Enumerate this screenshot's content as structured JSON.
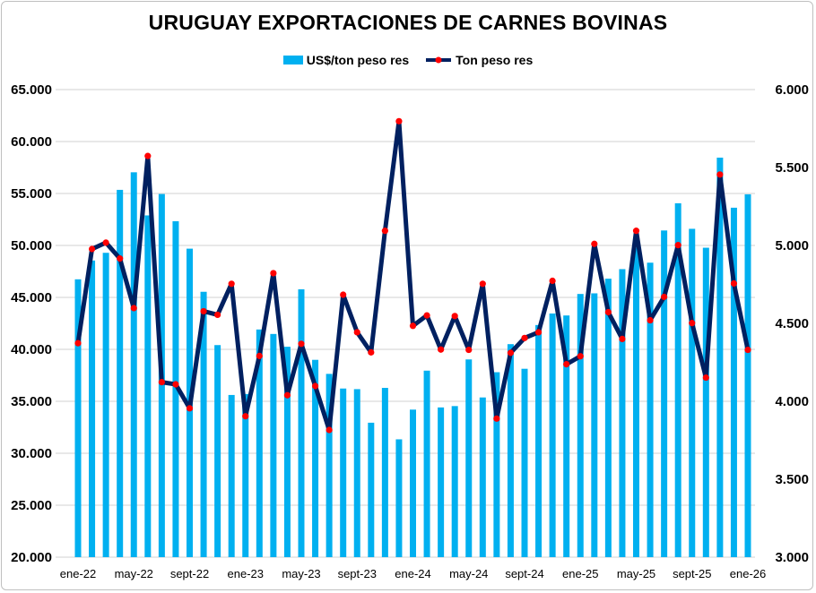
{
  "chart_data": {
    "type": "bar+line",
    "title": "URUGUAY EXPORTACIONES DE CARNES BOVINAS",
    "legend_position": "top-center",
    "categories": [
      "ene-22",
      "feb-22",
      "mar-22",
      "abr-22",
      "may-22",
      "jun-22",
      "jul-22",
      "ago-22",
      "sept-22",
      "oct-22",
      "nov-22",
      "dic-22",
      "ene-23",
      "feb-23",
      "mar-23",
      "abr-23",
      "may-23",
      "jun-23",
      "jul-23",
      "ago-23",
      "sept-23",
      "oct-23",
      "nov-23",
      "dic-23",
      "ene-24",
      "feb-24",
      "mar-24",
      "abr-24",
      "may-24",
      "jun-24",
      "jul-24",
      "ago-24",
      "sept-24",
      "oct-24",
      "nov-24",
      "dic-24",
      "ene-25",
      "feb-25",
      "mar-25",
      "abr-25",
      "may-25",
      "jun-25",
      "jul-25",
      "ago-25",
      "sept-25",
      "oct-25",
      "nov-25",
      "dic-25",
      "ene-26"
    ],
    "x_tick_labels": [
      "ene-22",
      "may-22",
      "sept-22",
      "ene-23",
      "may-23",
      "sept-23",
      "ene-24",
      "may-24",
      "sept-24",
      "ene-25",
      "may-25",
      "sept-25",
      "ene-26"
    ],
    "series": [
      {
        "name": "US$/ton peso res",
        "type": "bar",
        "axis": "left",
        "color": "#00b0f0",
        "values": [
          46740,
          48550,
          49290,
          55350,
          57040,
          52890,
          54950,
          52330,
          49690,
          45540,
          40410,
          35610,
          35700,
          41910,
          41480,
          40250,
          45780,
          38990,
          37640,
          36230,
          36170,
          32940,
          36290,
          31340,
          34200,
          37950,
          34410,
          34540,
          39030,
          35370,
          37800,
          40500,
          38130,
          42340,
          43450,
          43260,
          45330,
          45390,
          46800,
          47720,
          49800,
          48340,
          51440,
          54060,
          51600,
          49780,
          58450,
          53630,
          54920
        ]
      },
      {
        "name": "Ton peso res",
        "type": "line",
        "axis": "right",
        "color": "#002060",
        "marker_color": "#ff0000",
        "values": [
          4373,
          4977,
          5018,
          4916,
          4598,
          5574,
          4123,
          4109,
          3955,
          4578,
          4555,
          4754,
          3904,
          4291,
          4822,
          4039,
          4369,
          4098,
          3816,
          4684,
          4443,
          4314,
          5094,
          5797,
          4484,
          4551,
          4332,
          4547,
          4330,
          4754,
          3889,
          4311,
          4406,
          4443,
          4773,
          4238,
          4289,
          5010,
          4572,
          4400,
          5094,
          4520,
          4670,
          5002,
          4502,
          4152,
          5455,
          4756,
          4330
        ]
      }
    ],
    "y_left": {
      "range": [
        20000,
        65000
      ],
      "ticks": [
        "20.000",
        "25.000",
        "30.000",
        "35.000",
        "40.000",
        "45.000",
        "50.000",
        "55.000",
        "60.000",
        "65.000"
      ]
    },
    "y_right": {
      "range": [
        3000,
        6000
      ],
      "ticks": [
        "3.000",
        "3.500",
        "4.000",
        "4.500",
        "5.000",
        "5.500",
        "6.000"
      ]
    },
    "grid": true
  }
}
